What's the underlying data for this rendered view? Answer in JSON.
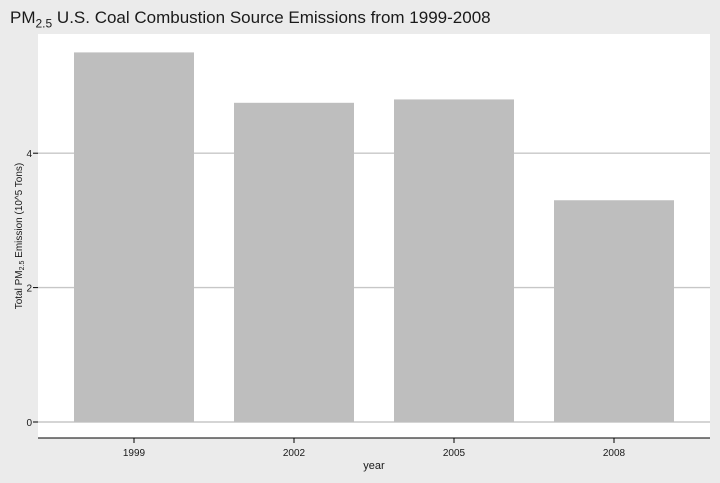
{
  "chart_data": {
    "type": "bar",
    "title": {
      "prefix": "PM",
      "subscript": "2.5",
      "rest": " U.S. Coal Combustion Source Emissions from 1999-2008"
    },
    "xlabel": "year",
    "ylabel": {
      "prefix": "Total PM",
      "subscript": "2.5",
      "rest": " Emission (10^5 Tons)"
    },
    "categories": [
      "1999",
      "2002",
      "2005",
      "2008"
    ],
    "values": [
      5.5,
      4.75,
      4.8,
      3.3
    ],
    "ylim": [
      0,
      5.8
    ],
    "yticks": [
      0,
      2,
      4
    ],
    "grid": true,
    "legend": "none",
    "colors": {
      "bar": "#bebebe",
      "background": "#ebebeb",
      "panel": "#ffffff",
      "grid": "#c7c7c7",
      "axis": "#000000",
      "text": "#1a1a1a"
    }
  }
}
